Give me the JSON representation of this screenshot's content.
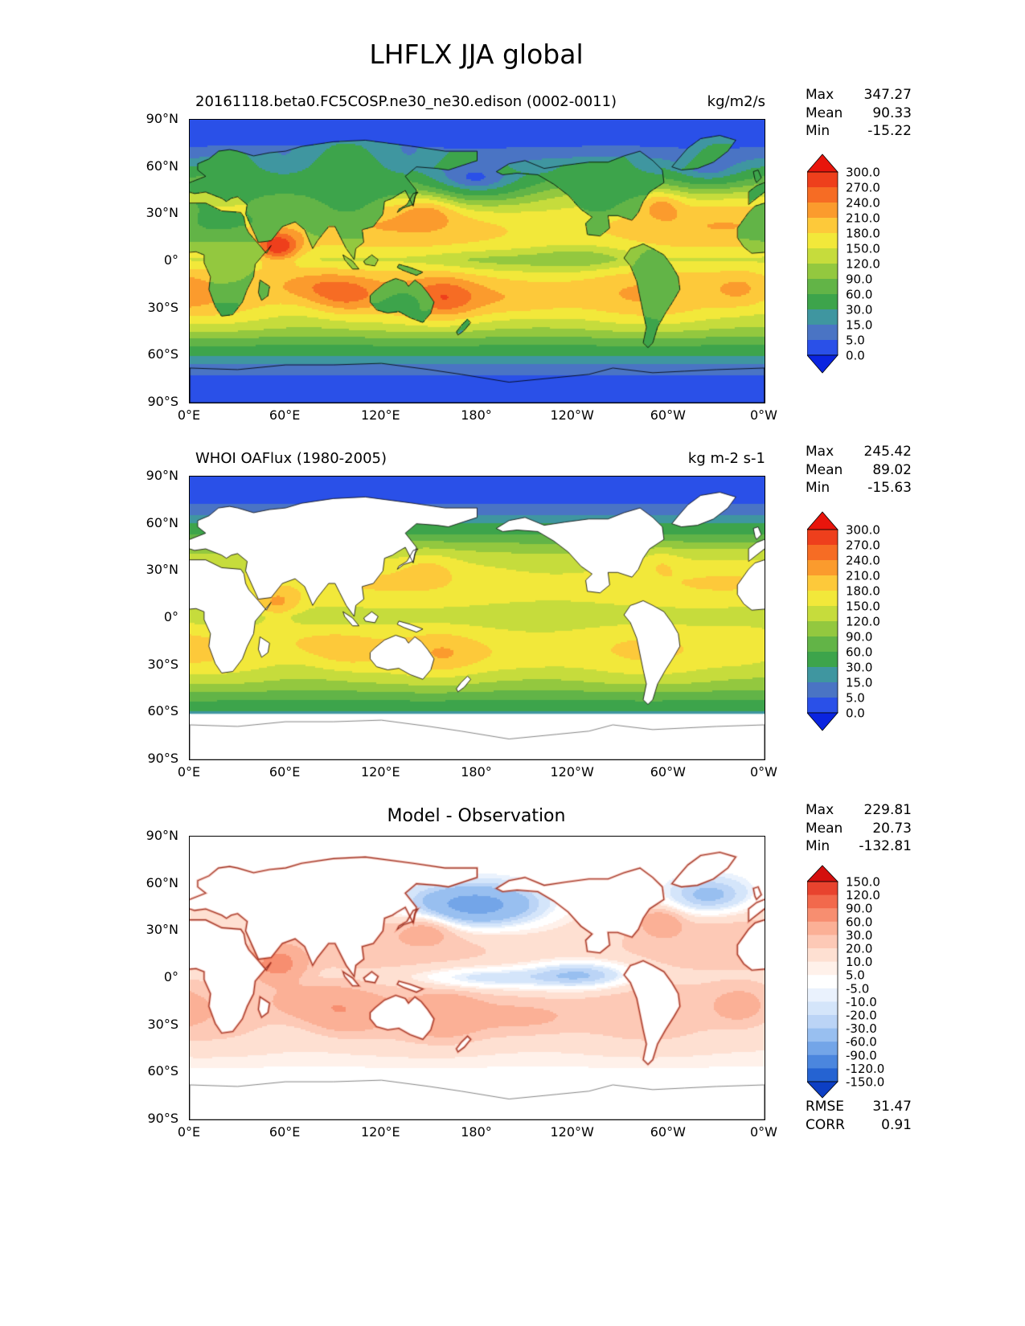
{
  "title": "LHFLX JJA global",
  "chart_data": {
    "type": "heatmap",
    "variable": "LHFLX",
    "season": "JJA",
    "region": "global",
    "lon_range_deg": [
      0,
      360
    ],
    "lat_range_deg": [
      -90,
      90
    ],
    "panels": [
      {
        "id": "model",
        "subtitle": "20161118.beta0.FC5COSP.ne30_ne30.edison (0002-0011)",
        "units": "kg/m2/s",
        "stats": [
          {
            "label": "Max",
            "value": "347.27"
          },
          {
            "label": "Mean",
            "value": "90.33"
          },
          {
            "label": "Min",
            "value": "-15.22"
          }
        ],
        "levels": [
          0,
          5,
          15,
          30,
          60,
          90,
          120,
          150,
          180,
          210,
          240,
          270,
          300
        ],
        "colorbar": {
          "ticks_top_to_bottom": [
            "300.0",
            "270.0",
            "240.0",
            "210.0",
            "180.0",
            "150.0",
            "120.0",
            "90.0",
            "60.0",
            "30.0",
            "15.0",
            "5.0",
            "0.0"
          ],
          "colors_top_to_bottom": [
            "#e8150c",
            "#ee3f1c",
            "#f66c24",
            "#fb9b2d",
            "#fdc93a",
            "#f2e83a",
            "#c6dc3c",
            "#93c83f",
            "#62b447",
            "#3da44b",
            "#3f96a0",
            "#4a74c4",
            "#2a50e8",
            "#0a24e0"
          ]
        },
        "x_ticks": [
          "0°E",
          "60°E",
          "120°E",
          "180°",
          "120°W",
          "60°W",
          "0°W"
        ],
        "y_ticks": [
          "90°N",
          "60°N",
          "30°N",
          "0°",
          "30°S",
          "60°S",
          "90°S"
        ],
        "field": "model"
      },
      {
        "id": "observation",
        "subtitle": "WHOI OAFlux (1980-2005)",
        "units": "kg m-2 s-1",
        "stats": [
          {
            "label": "Max",
            "value": "245.42"
          },
          {
            "label": "Mean",
            "value": "89.02"
          },
          {
            "label": "Min",
            "value": "-15.63"
          }
        ],
        "levels": [
          0,
          5,
          15,
          30,
          60,
          90,
          120,
          150,
          180,
          210,
          240,
          270,
          300
        ],
        "colorbar": {
          "ticks_top_to_bottom": [
            "300.0",
            "270.0",
            "240.0",
            "210.0",
            "180.0",
            "150.0",
            "120.0",
            "90.0",
            "60.0",
            "30.0",
            "15.0",
            "5.0",
            "0.0"
          ],
          "colors_top_to_bottom": [
            "#e8150c",
            "#ee3f1c",
            "#f66c24",
            "#fb9b2d",
            "#fdc93a",
            "#f2e83a",
            "#c6dc3c",
            "#93c83f",
            "#62b447",
            "#3da44b",
            "#3f96a0",
            "#4a74c4",
            "#2a50e8",
            "#0a24e0"
          ]
        },
        "x_ticks": [
          "0°E",
          "60°E",
          "120°E",
          "180°",
          "120°W",
          "60°W",
          "0°W"
        ],
        "y_ticks": [
          "90°N",
          "60°N",
          "30°N",
          "0°",
          "30°S",
          "60°S",
          "90°S"
        ],
        "field": "obs"
      },
      {
        "id": "difference",
        "subtitle": "Model - Observation",
        "units": "",
        "stats": [
          {
            "label": "Max",
            "value": "229.81"
          },
          {
            "label": "Mean",
            "value": "20.73"
          },
          {
            "label": "Min",
            "value": "-132.81"
          }
        ],
        "levels": [
          -150,
          -120,
          -90,
          -60,
          -30,
          -20,
          -10,
          -5,
          5,
          10,
          20,
          30,
          60,
          90,
          120,
          150
        ],
        "colorbar": {
          "ticks_top_to_bottom": [
            "150.0",
            "120.0",
            "90.0",
            "60.0",
            "30.0",
            "20.0",
            "10.0",
            "5.0",
            "-5.0",
            "-10.0",
            "-20.0",
            "-30.0",
            "-60.0",
            "-90.0",
            "-120.0",
            "-150.0"
          ],
          "colors_top_to_bottom": [
            "#d40f0e",
            "#e8432e",
            "#f2694c",
            "#f78e70",
            "#fbb096",
            "#fdc9b6",
            "#fee0d2",
            "#fff1ea",
            "#ffffff",
            "#eaf2fd",
            "#d4e5fa",
            "#bbd4f6",
            "#98bff0",
            "#73a5e8",
            "#4b86de",
            "#2563d2",
            "#0d3fc4"
          ]
        },
        "x_ticks": [
          "0°E",
          "60°E",
          "120°E",
          "180°",
          "120°W",
          "60°W",
          "0°W"
        ],
        "y_ticks": [
          "90°N",
          "60°N",
          "30°N",
          "0°",
          "30°S",
          "60°S",
          "90°S"
        ],
        "extra_stats": [
          {
            "label": "RMSE",
            "value": "31.47"
          },
          {
            "label": "CORR",
            "value": "0.91"
          }
        ],
        "field": "diff"
      }
    ]
  }
}
